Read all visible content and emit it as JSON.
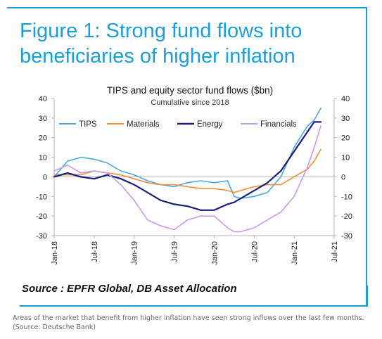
{
  "figure_title_line1": "Figure 1: Strong fund flows into",
  "figure_title_line2": "beneficiaries of higher inflation",
  "source": "Source : EPFR Global, DB Asset Allocation",
  "caption_line1": "Areas of the market that benefit from higher inflation have seen strong inflows over the last few months.",
  "caption_line2": "(Source: Deutsche Bank)",
  "colors": {
    "accent": "#1a9fd8",
    "TIPS": "#4aa8e0",
    "Materials": "#f28e3c",
    "Energy": "#1b1f7a",
    "Financials": "#c79be8"
  },
  "chart_data": {
    "type": "line",
    "title": "TIPS and equity sector fund flows ($bn)",
    "subtitle": "Cumulative since 2018",
    "xlabel": "",
    "ylabel": "",
    "ylim": [
      -30,
      40
    ],
    "yticks": [
      40,
      30,
      20,
      10,
      0,
      -10,
      -20,
      -30
    ],
    "xticks": [
      "Jan-18",
      "Jul-18",
      "Jan-19",
      "Jul-19",
      "Jan-20",
      "Jul-20",
      "Jan-21",
      "Jul-21"
    ],
    "x": [
      "Jan-18",
      "Mar-18",
      "May-18",
      "Jul-18",
      "Sep-18",
      "Nov-18",
      "Jan-19",
      "Mar-19",
      "May-19",
      "Jul-19",
      "Sep-19",
      "Nov-19",
      "Jan-20",
      "Mar-20",
      "Apr-20",
      "May-20",
      "Jul-20",
      "Sep-20",
      "Nov-20",
      "Jan-21",
      "Mar-21",
      "Apr-21",
      "May-21"
    ],
    "legend_position": "top",
    "grid": false,
    "series": [
      {
        "name": "TIPS",
        "values": [
          0,
          8,
          10,
          9,
          7,
          3,
          1,
          -2,
          -4,
          -5,
          -3,
          -2,
          -3,
          -2,
          -10,
          -11,
          -10,
          -8,
          0,
          15,
          26,
          29,
          35
        ]
      },
      {
        "name": "Materials",
        "values": [
          1,
          1,
          1,
          3,
          2,
          1,
          -1,
          -3,
          -4,
          -4,
          -5,
          -6,
          -6,
          -7,
          -8,
          -7,
          -5,
          -4,
          -4,
          0,
          4,
          8,
          14
        ]
      },
      {
        "name": "Energy",
        "values": [
          0,
          2,
          0,
          -1,
          1,
          -1,
          -4,
          -8,
          -12,
          -14,
          -15,
          -17,
          -17,
          -14,
          -13,
          -11,
          -7,
          -3,
          3,
          13,
          23,
          28,
          28
        ]
      },
      {
        "name": "Financials",
        "values": [
          3,
          6,
          2,
          3,
          2,
          -4,
          -12,
          -22,
          -25,
          -27,
          -22,
          -20,
          -20,
          -26,
          -28,
          -28,
          -26,
          -22,
          -18,
          -10,
          5,
          15,
          26
        ]
      }
    ]
  }
}
